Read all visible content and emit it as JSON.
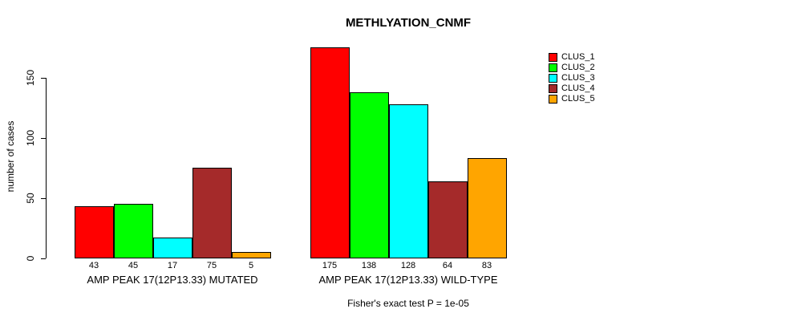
{
  "title": "METHLYATION_CNMF",
  "chart_data": {
    "type": "bar",
    "title": "METHLYATION_CNMF",
    "ylabel": "number of cases",
    "xlabel": "",
    "ylim": [
      0,
      175
    ],
    "yticks": [
      0,
      50,
      100,
      150
    ],
    "grid": false,
    "legend_position": "top-right",
    "categories": [
      "AMP PEAK 17(12P13.33) MUTATED",
      "AMP PEAK 17(12P13.33) WILD-TYPE"
    ],
    "series": [
      {
        "name": "CLUS_1",
        "color": "#ff0000",
        "values": [
          43,
          175
        ]
      },
      {
        "name": "CLUS_2",
        "color": "#00ff00",
        "values": [
          45,
          138
        ]
      },
      {
        "name": "CLUS_3",
        "color": "#00ffff",
        "values": [
          17,
          128
        ]
      },
      {
        "name": "CLUS_4",
        "color": "#a52a2a",
        "values": [
          75,
          64
        ]
      },
      {
        "name": "CLUS_5",
        "color": "#ffa500",
        "values": [
          5,
          83
        ]
      }
    ],
    "value_labels_visible": true,
    "annotation": "Fisher's exact test P = 1e-05"
  }
}
